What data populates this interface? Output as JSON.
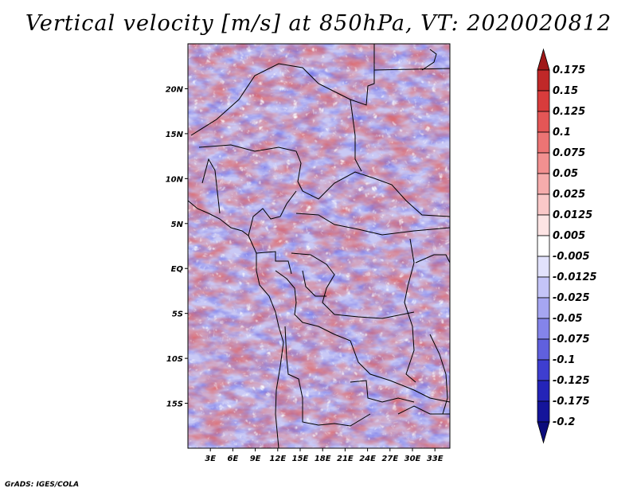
{
  "title": "Vertical velocity [m/s] at 850hPa, VT: 2020020812",
  "credit": "GrADS: IGES/COLA",
  "map": {
    "lon_range": [
      0,
      35
    ],
    "lat_range": [
      -20,
      25
    ],
    "lat_ticks": [
      {
        "lat": 20,
        "label": "20N"
      },
      {
        "lat": 15,
        "label": "15N"
      },
      {
        "lat": 10,
        "label": "10N"
      },
      {
        "lat": 5,
        "label": "5N"
      },
      {
        "lat": 0,
        "label": "EQ"
      },
      {
        "lat": -5,
        "label": "5S"
      },
      {
        "lat": -10,
        "label": "10S"
      },
      {
        "lat": -15,
        "label": "15S"
      }
    ],
    "lon_ticks": [
      {
        "lon": 3,
        "label": "3E"
      },
      {
        "lon": 6,
        "label": "6E"
      },
      {
        "lon": 9,
        "label": "9E"
      },
      {
        "lon": 12,
        "label": "12E"
      },
      {
        "lon": 15,
        "label": "15E"
      },
      {
        "lon": 18,
        "label": "18E"
      },
      {
        "lon": 21,
        "label": "21E"
      },
      {
        "lon": 24,
        "label": "24E"
      },
      {
        "lon": 27,
        "label": "27E"
      },
      {
        "lon": 30,
        "label": "30E"
      },
      {
        "lon": 33,
        "label": "33E"
      }
    ]
  },
  "colorbar": {
    "levels": [
      "0.175",
      "0.15",
      "0.125",
      "0.1",
      "0.075",
      "0.05",
      "0.025",
      "0.0125",
      "0.005",
      "-0.005",
      "-0.0125",
      "-0.025",
      "-0.05",
      "-0.075",
      "-0.1",
      "-0.125",
      "-0.175",
      "-0.2"
    ],
    "colors": [
      "#a01818",
      "#c02828",
      "#d83c3c",
      "#e45656",
      "#ec7474",
      "#f29090",
      "#f6acac",
      "#fac8c8",
      "#fde4e4",
      "#ffffff",
      "#e2e2fc",
      "#c4c4f8",
      "#a6a6f2",
      "#8484ea",
      "#6060de",
      "#3e3ed0",
      "#2424b8",
      "#14149a",
      "#0c0c7c"
    ]
  }
}
